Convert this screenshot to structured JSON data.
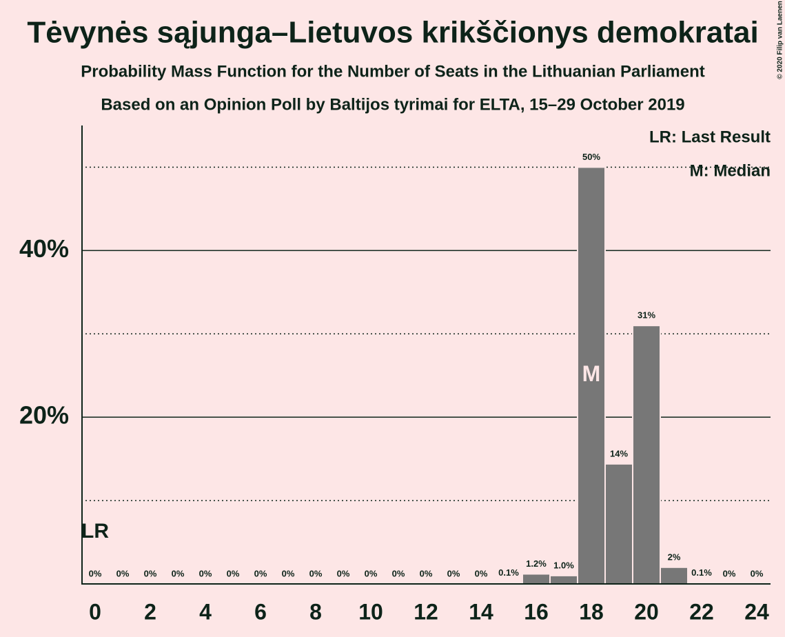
{
  "chart_data": {
    "type": "bar",
    "title": "Tėvynės sąjunga–Lietuvos krikščionys demokratai",
    "subtitle": "Probability Mass Function for the Number of Seats in the Lithuanian Parliament",
    "subtitle2": "Based on an Opinion Poll by Baltijos tyrimai for ELTA, 15–29 October 2019",
    "copyright": "© 2020 Filip van Laenen",
    "x": [
      0,
      1,
      2,
      3,
      4,
      5,
      6,
      7,
      8,
      9,
      10,
      11,
      12,
      13,
      14,
      15,
      16,
      17,
      18,
      19,
      20,
      21,
      22,
      23,
      24
    ],
    "values": [
      0,
      0,
      0,
      0,
      0,
      0,
      0,
      0,
      0,
      0,
      0,
      0,
      0,
      0,
      0,
      0.1,
      1.2,
      1.0,
      50,
      14.4,
      31,
      2,
      0.1,
      0,
      0
    ],
    "value_labels": [
      "0%",
      "0%",
      "0%",
      "0%",
      "0%",
      "0%",
      "0%",
      "0%",
      "0%",
      "0%",
      "0%",
      "0%",
      "0%",
      "0%",
      "0%",
      "0.1%",
      "1.2%",
      "1.0%",
      "50%",
      "14%",
      "31%",
      "2%",
      "0.1%",
      "0%",
      "0%"
    ],
    "color": "#777777",
    "xlim": [
      -0.5,
      24.5
    ],
    "xticks": [
      0,
      2,
      4,
      6,
      8,
      10,
      12,
      14,
      16,
      18,
      20,
      22,
      24
    ],
    "ylim": [
      0,
      55
    ],
    "yticks": [
      {
        "value": 20,
        "label": "20%"
      },
      {
        "value": 40,
        "label": "40%"
      }
    ],
    "minor_yticks": [
      10,
      30,
      50
    ],
    "last_result": {
      "x": 0,
      "label": "LR"
    },
    "median": {
      "x": 18,
      "label": "M"
    },
    "legend": [
      "LR: Last Result",
      "M: Median"
    ]
  }
}
